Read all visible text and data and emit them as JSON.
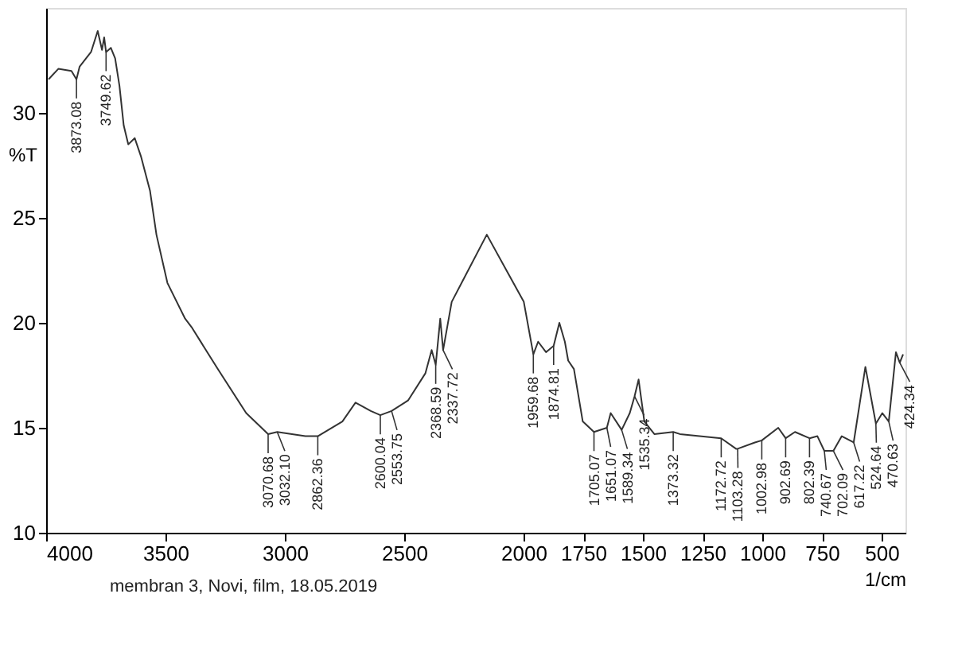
{
  "chart_data": {
    "type": "line",
    "xlabel": "1/cm",
    "ylabel": "%T",
    "xlim": [
      4000,
      400
    ],
    "ylim": [
      10,
      35
    ],
    "xticks": [
      4000,
      3500,
      3000,
      2500,
      2000,
      1750,
      1500,
      1250,
      1000,
      750,
      500
    ],
    "yticks": [
      10,
      15,
      20,
      25,
      30
    ],
    "grid": false,
    "marker": "none",
    "line_style": "solid",
    "series": [
      {
        "color": "#333333",
        "x": [
          3990,
          3949,
          3894,
          3873,
          3860,
          3812,
          3784,
          3766,
          3757,
          3749,
          3729,
          3711,
          3693,
          3675,
          3656,
          3629,
          3602,
          3565,
          3538,
          3492,
          3418,
          3391,
          3281,
          3162,
          3070,
          3032,
          2914,
          2862,
          2759,
          2704,
          2640,
          2600,
          2553,
          2484,
          2411,
          2385,
          2368,
          2349,
          2337,
          2301,
          2246,
          2154,
          2062,
          1999,
          1959,
          1939,
          1906,
          1874,
          1850,
          1827,
          1813,
          1789,
          1752,
          1705,
          1651,
          1635,
          1589,
          1555,
          1535,
          1518,
          1494,
          1452,
          1373,
          1345,
          1172,
          1110,
          1103,
          1031,
          1002,
          933,
          902,
          863,
          802,
          769,
          740,
          702,
          667,
          617,
          568,
          524,
          497,
          470,
          440,
          424,
          410
        ],
        "values": [
          31.6,
          32.1,
          32.0,
          31.6,
          32.2,
          32.9,
          33.9,
          33.0,
          33.6,
          32.9,
          33.1,
          32.6,
          31.3,
          29.4,
          28.5,
          28.8,
          27.9,
          26.3,
          24.2,
          21.9,
          20.2,
          19.8,
          17.8,
          15.7,
          14.7,
          14.8,
          14.6,
          14.6,
          15.3,
          16.2,
          15.8,
          15.6,
          15.8,
          16.3,
          17.6,
          18.7,
          18.0,
          20.2,
          18.7,
          21.0,
          22.2,
          24.2,
          22.3,
          21.0,
          18.5,
          19.1,
          18.6,
          18.9,
          20.0,
          19.1,
          18.2,
          17.8,
          15.3,
          14.8,
          15.0,
          15.7,
          14.9,
          15.7,
          16.5,
          17.3,
          15.3,
          14.7,
          14.8,
          14.7,
          14.5,
          14.0,
          14.0,
          14.3,
          14.4,
          15.0,
          14.5,
          14.8,
          14.5,
          14.6,
          13.9,
          13.9,
          14.6,
          14.3,
          17.9,
          15.2,
          15.7,
          15.3,
          18.6,
          18.1,
          18.5
        ]
      }
    ],
    "annotations": [
      {
        "text": "3873.08",
        "x": 3873,
        "y": 31.6
      },
      {
        "text": "3749.62",
        "x": 3749,
        "y": 32.9
      },
      {
        "text": "3070.68",
        "x": 3070,
        "y": 14.7
      },
      {
        "text": "3032.10",
        "x": 3032,
        "y": 14.8
      },
      {
        "text": "2862.36",
        "x": 2862,
        "y": 14.6
      },
      {
        "text": "2600.04",
        "x": 2600,
        "y": 15.6
      },
      {
        "text": "2553.75",
        "x": 2553,
        "y": 15.8
      },
      {
        "text": "2368.59",
        "x": 2368,
        "y": 18.0
      },
      {
        "text": "2337.72",
        "x": 2337,
        "y": 18.7
      },
      {
        "text": "1959.68",
        "x": 1959,
        "y": 18.5
      },
      {
        "text": "1874.81",
        "x": 1874,
        "y": 18.9
      },
      {
        "text": "1705.07",
        "x": 1705,
        "y": 14.8
      },
      {
        "text": "1651.07",
        "x": 1651,
        "y": 15.0
      },
      {
        "text": "1589.34",
        "x": 1589,
        "y": 14.9
      },
      {
        "text": "1535.34",
        "x": 1535,
        "y": 16.5
      },
      {
        "text": "1373.32",
        "x": 1373,
        "y": 14.8
      },
      {
        "text": "1172.72",
        "x": 1172,
        "y": 14.5
      },
      {
        "text": "1103.28",
        "x": 1103,
        "y": 14.0
      },
      {
        "text": "1002.98",
        "x": 1002,
        "y": 14.4
      },
      {
        "text": "902.69",
        "x": 902,
        "y": 14.5
      },
      {
        "text": "802.39",
        "x": 802,
        "y": 14.5
      },
      {
        "text": "740.67",
        "x": 740,
        "y": 13.9
      },
      {
        "text": "702.09",
        "x": 702,
        "y": 13.9
      },
      {
        "text": "617.22",
        "x": 617,
        "y": 14.3
      },
      {
        "text": "524.64",
        "x": 524,
        "y": 15.2
      },
      {
        "text": "470.63",
        "x": 470,
        "y": 15.3
      },
      {
        "text": "424.34",
        "x": 424,
        "y": 18.1
      },
      "membran 3, Novi, film, 18.05.2019"
    ]
  }
}
